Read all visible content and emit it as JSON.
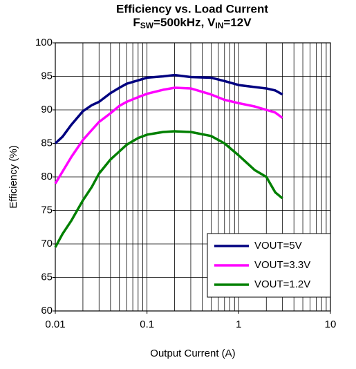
{
  "chart_data": {
    "type": "line",
    "title": "Efficiency vs. Load Current",
    "subtitle_parts": [
      "F",
      "SW",
      "=500kHz, V",
      "IN",
      "=12V"
    ],
    "x_label": "Output Current (A)",
    "y_label": "Efficiency (%)",
    "x": [
      0.01,
      0.012,
      0.015,
      0.02,
      0.025,
      0.03,
      0.04,
      0.05,
      0.06,
      0.08,
      0.1,
      0.15,
      0.2,
      0.3,
      0.5,
      0.7,
      1,
      1.5,
      2,
      2.5,
      3
    ],
    "series": [
      {
        "name": "VOUT=5V",
        "color": "#000080",
        "values": [
          85,
          86,
          87.8,
          89.8,
          90.7,
          91.2,
          92.5,
          93.3,
          93.9,
          94.4,
          94.8,
          95,
          95.2,
          94.9,
          94.8,
          94.3,
          93.7,
          93.4,
          93.2,
          92.9,
          92.3
        ]
      },
      {
        "name": "VOUT=3.3V",
        "color": "#ff00ff",
        "values": [
          79,
          80.8,
          83,
          85.5,
          87,
          88.2,
          89.5,
          90.6,
          91.2,
          91.9,
          92.4,
          93,
          93.3,
          93.2,
          92.3,
          91.5,
          91,
          90.5,
          90,
          89.6,
          88.8
        ]
      },
      {
        "name": "VOUT=1.2V",
        "color": "#008000",
        "values": [
          69.5,
          71.5,
          73.5,
          76.5,
          78.5,
          80.5,
          82.6,
          83.8,
          84.8,
          85.8,
          86.3,
          86.7,
          86.8,
          86.7,
          86.1,
          85,
          83.2,
          81,
          80,
          77.7,
          76.8
        ]
      }
    ],
    "xlim": [
      0.01,
      10
    ],
    "xticks": [
      0.01,
      0.1,
      1,
      10
    ],
    "x_log": true,
    "ylim": [
      60,
      100
    ],
    "yticks": [
      60,
      65,
      70,
      75,
      80,
      85,
      90,
      95,
      100
    ],
    "grid": true,
    "legend": "lower right"
  }
}
